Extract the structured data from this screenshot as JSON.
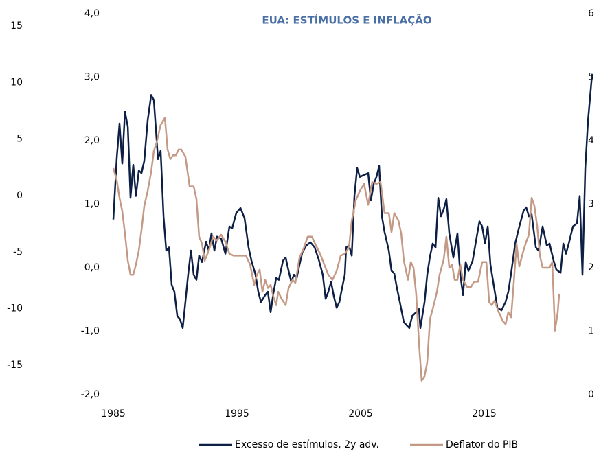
{
  "chart_data": {
    "type": "line",
    "title": "EUA: ESTÍMULOS E INFLAÇÃO",
    "title_color": "#4a6fa5",
    "xlim": [
      1985,
      2023.72
    ],
    "xticks": [
      1985,
      1995,
      2005,
      2015
    ],
    "ylim": [
      -2,
      4
    ],
    "yticks": [
      {
        "value": -2,
        "label": "-2,0"
      },
      {
        "value": -1,
        "label": "-1,0"
      },
      {
        "value": 0,
        "label": "0,0"
      },
      {
        "value": 1,
        "label": "1,0"
      },
      {
        "value": 2,
        "label": "2,0"
      },
      {
        "value": 3,
        "label": "3,0"
      },
      {
        "value": 4,
        "label": "4,0"
      }
    ],
    "y2lim": [
      0,
      6
    ],
    "y2ticks": [
      0,
      1,
      2,
      3,
      4,
      5,
      6
    ],
    "y3lim": [
      -17.61,
      16.09
    ],
    "y3ticks": [
      -15,
      -10,
      -5,
      0,
      5,
      10,
      15
    ],
    "legend": "bottom",
    "series": [
      {
        "name": "Excesso de estímulos, 2y adv.",
        "color": "#0d1f45",
        "axis": "y",
        "x": [
          1985.0,
          1985.28,
          1985.5,
          1985.72,
          1985.94,
          1986.17,
          1986.39,
          1986.61,
          1986.83,
          1987.06,
          1987.28,
          1987.5,
          1987.78,
          1988.06,
          1988.28,
          1988.61,
          1988.83,
          1989.06,
          1989.28,
          1989.5,
          1989.72,
          1989.94,
          1990.17,
          1990.39,
          1990.61,
          1990.83,
          1991.06,
          1991.28,
          1991.5,
          1991.72,
          1991.94,
          1992.17,
          1992.5,
          1992.72,
          1992.94,
          1993.17,
          1993.39,
          1993.72,
          1994.06,
          1994.39,
          1994.61,
          1994.94,
          1995.28,
          1995.61,
          1995.94,
          1996.17,
          1996.5,
          1996.72,
          1996.94,
          1997.28,
          1997.5,
          1997.72,
          1997.94,
          1998.17,
          1998.39,
          1998.72,
          1998.94,
          1999.17,
          1999.39,
          1999.61,
          1999.83,
          2000.06,
          2000.28,
          2000.61,
          2000.94,
          2001.28,
          2001.61,
          2001.94,
          2002.17,
          2002.39,
          2002.61,
          2002.83,
          2003.06,
          2003.28,
          2003.5,
          2003.72,
          2003.83,
          2004.06,
          2004.28,
          2004.5,
          2004.72,
          2004.94,
          2005.28,
          2005.61,
          2005.83,
          2006.06,
          2006.28,
          2006.5,
          2006.72,
          2006.94,
          2007.28,
          2007.5,
          2007.72,
          2007.94,
          2008.17,
          2008.5,
          2008.94,
          2009.17,
          2009.5,
          2009.72,
          2009.83,
          2010.17,
          2010.39,
          2010.61,
          2010.83,
          2011.06,
          2011.28,
          2011.5,
          2011.72,
          2011.94,
          2012.17,
          2012.5,
          2012.83,
          2013.06,
          2013.28,
          2013.5,
          2013.72,
          2014.06,
          2014.39,
          2014.61,
          2014.83,
          2015.06,
          2015.28,
          2015.5,
          2015.72,
          2016.06,
          2016.39,
          2016.72,
          2016.94,
          2017.17,
          2017.5,
          2017.83,
          2018.17,
          2018.39,
          2018.61,
          2018.83,
          2019.17,
          2019.39,
          2019.72,
          2020.06,
          2020.28,
          2020.61,
          2020.83,
          2021.17,
          2021.39,
          2021.61,
          2021.83,
          2022.17,
          2022.5,
          2022.72,
          2022.94,
          2023.17,
          2023.39,
          2023.72
        ],
        "values": [
          0.76,
          1.73,
          2.27,
          1.64,
          2.46,
          2.22,
          1.1,
          1.62,
          1.13,
          1.53,
          1.49,
          1.68,
          2.32,
          2.72,
          2.64,
          1.71,
          1.84,
          0.81,
          0.27,
          0.32,
          -0.27,
          -0.38,
          -0.76,
          -0.81,
          -0.95,
          -0.54,
          -0.09,
          0.27,
          -0.11,
          -0.19,
          0.19,
          0.09,
          0.41,
          0.27,
          0.54,
          0.27,
          0.49,
          0.46,
          0.22,
          0.65,
          0.62,
          0.86,
          0.94,
          0.78,
          0.32,
          0.11,
          -0.11,
          -0.38,
          -0.54,
          -0.43,
          -0.38,
          -0.7,
          -0.41,
          -0.16,
          -0.19,
          0.11,
          0.16,
          -0.05,
          -0.22,
          -0.11,
          -0.16,
          0.05,
          0.24,
          0.35,
          0.4,
          0.32,
          0.13,
          -0.11,
          -0.49,
          -0.38,
          -0.22,
          -0.45,
          -0.63,
          -0.54,
          -0.32,
          -0.11,
          0.32,
          0.35,
          0.19,
          1.13,
          1.57,
          1.43,
          1.46,
          1.49,
          1.06,
          1.32,
          1.43,
          1.6,
          0.81,
          0.56,
          0.27,
          -0.05,
          -0.09,
          -0.32,
          -0.54,
          -0.86,
          -0.95,
          -0.76,
          -0.7,
          -0.65,
          -0.95,
          -0.54,
          -0.11,
          0.18,
          0.38,
          0.32,
          1.1,
          0.81,
          0.92,
          1.08,
          0.54,
          0.16,
          0.54,
          -0.11,
          -0.43,
          0.09,
          -0.05,
          0.11,
          0.49,
          0.73,
          0.65,
          0.38,
          0.65,
          0.05,
          -0.22,
          -0.63,
          -0.67,
          -0.54,
          -0.38,
          -0.09,
          0.38,
          0.65,
          0.89,
          0.95,
          0.81,
          0.84,
          0.32,
          0.27,
          0.65,
          0.35,
          0.38,
          0.11,
          -0.03,
          -0.08,
          0.38,
          0.22,
          0.38,
          0.65,
          0.7,
          1.13,
          -0.11,
          1.57,
          2.32,
          3.05
        ]
      },
      {
        "name": "Deflator do PIB",
        "color": "#c49a86",
        "axis": "y2",
        "x": [
          1985.0,
          1985.28,
          1985.5,
          1985.72,
          1985.94,
          1986.17,
          1986.39,
          1986.61,
          1986.83,
          1987.06,
          1987.28,
          1987.5,
          1987.78,
          1988.06,
          1988.28,
          1988.5,
          1988.83,
          1989.17,
          1989.39,
          1989.61,
          1989.83,
          1990.06,
          1990.28,
          1990.5,
          1990.83,
          1991.17,
          1991.5,
          1991.72,
          1991.94,
          1992.17,
          1992.39,
          1992.72,
          1993.06,
          1993.39,
          1993.72,
          1994.06,
          1994.39,
          1994.72,
          1995.06,
          1995.39,
          1995.72,
          1996.06,
          1996.39,
          1996.61,
          1996.83,
          1997.06,
          1997.28,
          1997.5,
          1997.72,
          1997.94,
          1998.17,
          1998.33,
          1998.61,
          1998.94,
          1999.17,
          1999.5,
          1999.72,
          2000.06,
          2000.39,
          2000.72,
          2001.06,
          2001.39,
          2001.72,
          2002.06,
          2002.39,
          2002.72,
          2003.06,
          2003.39,
          2003.72,
          2004.06,
          2004.28,
          2004.61,
          2004.94,
          2005.28,
          2005.61,
          2005.94,
          2006.28,
          2006.61,
          2006.94,
          2007.28,
          2007.5,
          2007.72,
          2008.06,
          2008.28,
          2008.5,
          2008.83,
          2009.06,
          2009.28,
          2009.5,
          2009.72,
          2009.94,
          2010.17,
          2010.39,
          2010.61,
          2010.94,
          2011.17,
          2011.39,
          2011.72,
          2011.94,
          2012.17,
          2012.39,
          2012.61,
          2012.83,
          2013.06,
          2013.28,
          2013.61,
          2013.94,
          2014.17,
          2014.5,
          2014.83,
          2015.17,
          2015.39,
          2015.61,
          2015.83,
          2016.17,
          2016.5,
          2016.72,
          2016.94,
          2017.17,
          2017.39,
          2017.61,
          2017.83,
          2018.17,
          2018.39,
          2018.61,
          2018.83,
          2019.06,
          2019.28,
          2019.5,
          2019.72,
          2020.06,
          2020.28,
          2020.5,
          2020.72,
          2020.94,
          2021.06
        ],
        "values": [
          3.57,
          3.38,
          3.1,
          2.89,
          2.54,
          2.11,
          1.89,
          1.89,
          2.05,
          2.27,
          2.59,
          2.97,
          3.21,
          3.51,
          3.84,
          3.97,
          4.25,
          4.36,
          3.86,
          3.71,
          3.77,
          3.77,
          3.86,
          3.86,
          3.75,
          3.28,
          3.28,
          3.08,
          2.49,
          2.38,
          2.11,
          2.27,
          2.49,
          2.43,
          2.52,
          2.41,
          2.22,
          2.19,
          2.19,
          2.19,
          2.19,
          2.05,
          1.73,
          1.89,
          1.97,
          1.62,
          1.81,
          1.68,
          1.73,
          1.55,
          1.41,
          1.62,
          1.51,
          1.41,
          1.68,
          1.81,
          1.76,
          2.16,
          2.3,
          2.49,
          2.49,
          2.35,
          2.22,
          2.05,
          1.89,
          1.81,
          1.95,
          2.19,
          2.22,
          2.32,
          2.74,
          3.06,
          3.21,
          3.32,
          2.99,
          3.35,
          3.32,
          3.35,
          2.86,
          2.86,
          2.56,
          2.86,
          2.74,
          2.54,
          2.11,
          1.81,
          2.09,
          2.0,
          1.57,
          0.81,
          0.22,
          0.29,
          0.51,
          1.19,
          1.43,
          1.62,
          1.89,
          2.13,
          2.49,
          2.0,
          2.05,
          1.81,
          1.81,
          2.05,
          1.81,
          1.7,
          1.7,
          1.78,
          1.78,
          2.09,
          2.09,
          1.46,
          1.41,
          1.48,
          1.3,
          1.16,
          1.11,
          1.3,
          1.22,
          1.78,
          2.38,
          2.02,
          2.27,
          2.41,
          2.52,
          3.1,
          2.97,
          2.65,
          2.19,
          2.0,
          2.0,
          2.0,
          2.09,
          1.01,
          1.3,
          1.59
        ]
      }
    ]
  }
}
